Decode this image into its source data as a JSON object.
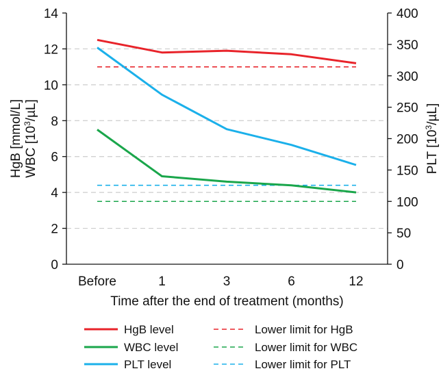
{
  "chart_data": {
    "type": "line",
    "categories": [
      "Before",
      "1",
      "3",
      "6",
      "12"
    ],
    "xlabel": "Time after the end of treatment (months)",
    "ylabel_left_line1": "HgB [mmol/L]",
    "ylabel_left_line2_prefix": "WBC [10",
    "ylabel_left_line2_sup": "3",
    "ylabel_left_line2_suffix": "/µL]",
    "ylabel_right_prefix": "PLT [10",
    "ylabel_right_sup": "3",
    "ylabel_right_suffix": "/µL]",
    "ylim_left": [
      0,
      14
    ],
    "yticks_left": [
      "0",
      "2",
      "4",
      "6",
      "8",
      "10",
      "12",
      "14"
    ],
    "ylim_right": [
      0,
      400
    ],
    "yticks_right": [
      "0",
      "50",
      "100",
      "150",
      "200",
      "250",
      "300",
      "350",
      "400"
    ],
    "grid": "horizontal dashed",
    "legend_position": "bottom",
    "series": [
      {
        "name": "HgB level",
        "axis": "left",
        "style": "solid",
        "color": "#e8232a",
        "values": [
          12.5,
          11.8,
          11.9,
          11.7,
          11.2
        ]
      },
      {
        "name": "WBC level",
        "axis": "left",
        "style": "solid",
        "color": "#1aa64b",
        "values": [
          7.5,
          4.9,
          4.6,
          4.4,
          4.0
        ]
      },
      {
        "name": "PLT level",
        "axis": "right",
        "style": "solid",
        "color": "#1bb0ea",
        "values": [
          345,
          270,
          215,
          190,
          158
        ]
      }
    ],
    "reference_lines": [
      {
        "name": "Lower limit for HgB",
        "axis": "left",
        "style": "dashed",
        "color": "#e8232a",
        "value": 11.0
      },
      {
        "name": "Lower limit for WBC",
        "axis": "left",
        "style": "dashed",
        "color": "#1aa64b",
        "value": 3.5
      },
      {
        "name": "Lower limit for PLT",
        "axis": "left",
        "style": "dashed",
        "color": "#1bb0ea",
        "value": 4.4
      }
    ]
  }
}
